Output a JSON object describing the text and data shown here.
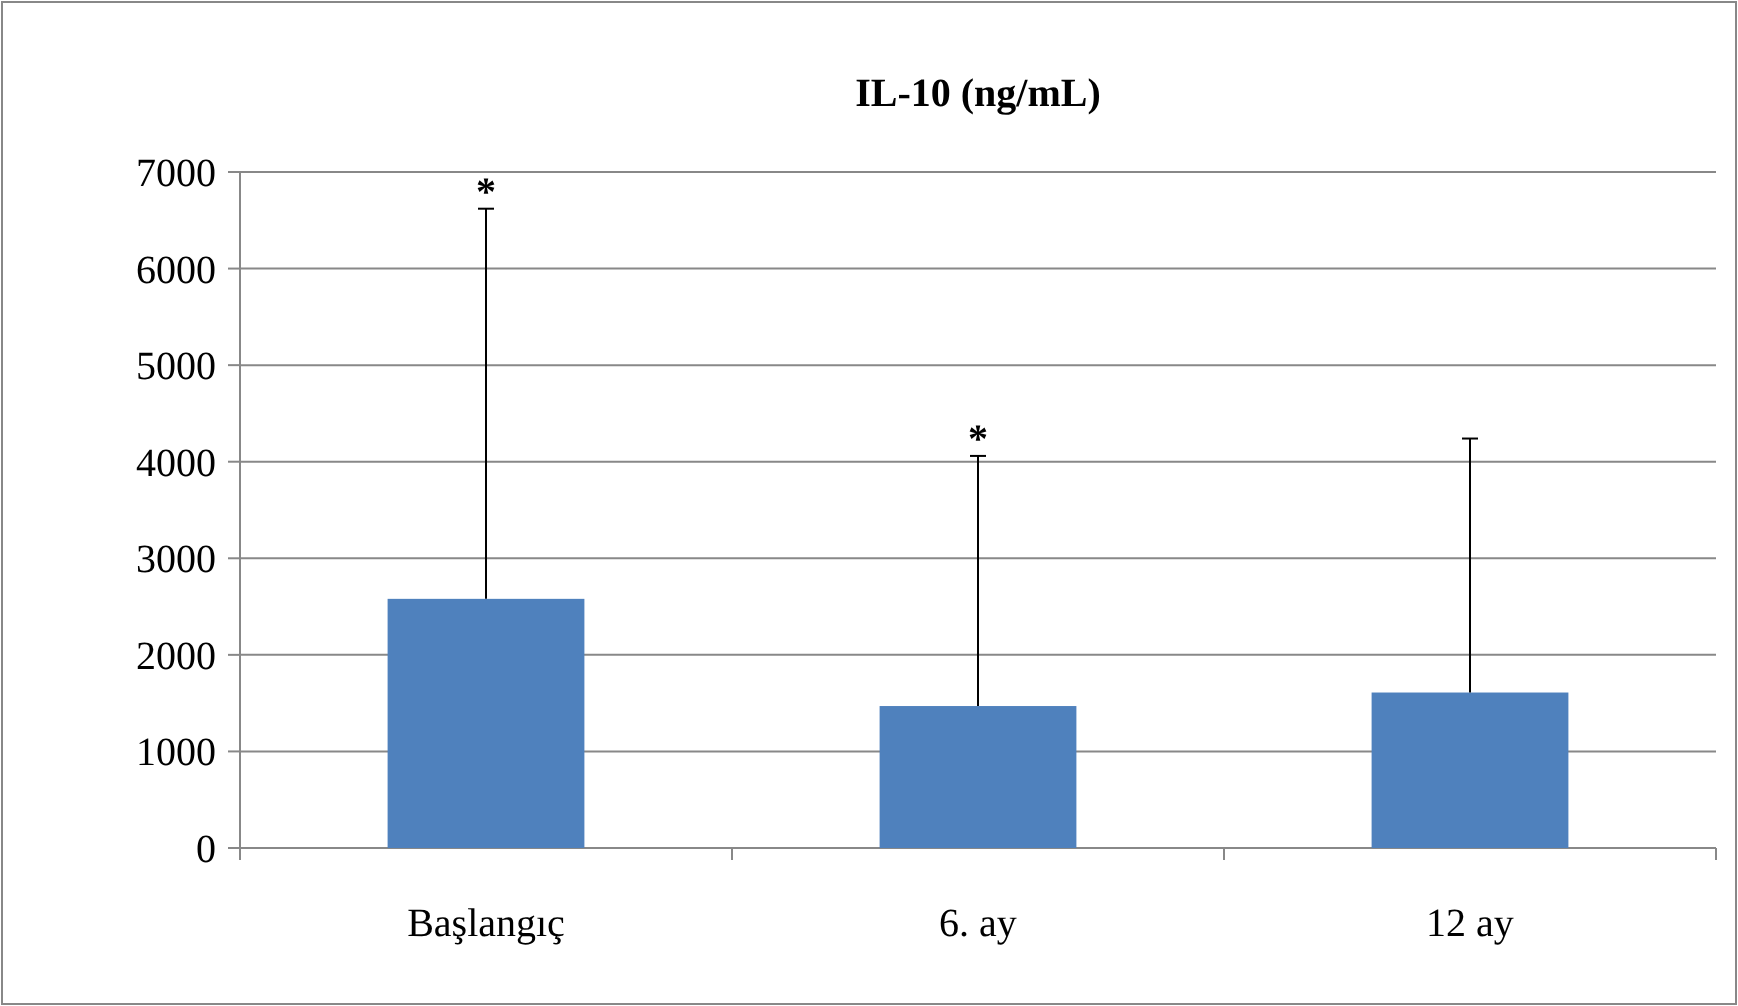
{
  "chart_data": {
    "type": "bar",
    "title": "IL-10 (ng/mL)",
    "categories": [
      "Başlangıç",
      "6. ay",
      "12 ay"
    ],
    "values": [
      2580,
      1470,
      1610
    ],
    "color": "#4f81bd",
    "errors": [
      [
        2580,
        6620
      ],
      [
        1470,
        4060
      ],
      [
        1610,
        4240
      ]
    ],
    "annotations": [
      {
        "text": "*",
        "x": "Başlangıç",
        "y": 6620
      },
      {
        "text": "*",
        "x": "6. ay",
        "y": 4060
      }
    ],
    "ylim": [
      0,
      7000
    ],
    "yticks": [
      0,
      1000,
      2000,
      3000,
      4000,
      5000,
      6000,
      7000
    ],
    "grid": "y"
  }
}
